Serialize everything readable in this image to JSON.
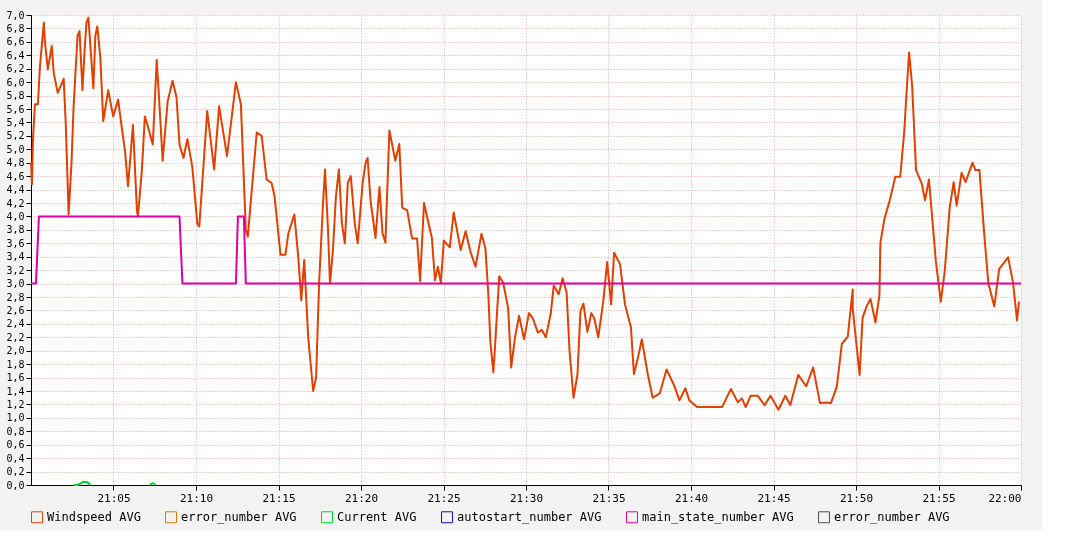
{
  "chart_data": {
    "type": "line",
    "xlim": [
      21.0,
      22.0
    ],
    "xticks": [
      {
        "value": 21.0833,
        "label": "21:05"
      },
      {
        "value": 21.1667,
        "label": "21:10"
      },
      {
        "value": 21.25,
        "label": "21:15"
      },
      {
        "value": 21.3333,
        "label": "21:20"
      },
      {
        "value": 21.4167,
        "label": "21:25"
      },
      {
        "value": 21.5,
        "label": "21:30"
      },
      {
        "value": 21.5833,
        "label": "21:35"
      },
      {
        "value": 21.6667,
        "label": "21:40"
      },
      {
        "value": 21.75,
        "label": "21:45"
      },
      {
        "value": 21.8333,
        "label": "21:50"
      },
      {
        "value": 21.9167,
        "label": "21:55"
      },
      {
        "value": 22.0,
        "label": "22:00"
      }
    ],
    "ylim": [
      0,
      7
    ],
    "yticks": [
      {
        "value": 0,
        "label": "0,0"
      },
      {
        "value": 0.2,
        "label": "0,2"
      },
      {
        "value": 0.4,
        "label": "0,4"
      },
      {
        "value": 0.6,
        "label": "0,6"
      },
      {
        "value": 0.8,
        "label": "0,8"
      },
      {
        "value": 1.0,
        "label": "1,0"
      },
      {
        "value": 1.2,
        "label": "1,2"
      },
      {
        "value": 1.4,
        "label": "1,4"
      },
      {
        "value": 1.6,
        "label": "1,6"
      },
      {
        "value": 1.8,
        "label": "1,8"
      },
      {
        "value": 2.0,
        "label": "2,0"
      },
      {
        "value": 2.2,
        "label": "2,2"
      },
      {
        "value": 2.4,
        "label": "2,4"
      },
      {
        "value": 2.6,
        "label": "2,6"
      },
      {
        "value": 2.8,
        "label": "2,8"
      },
      {
        "value": 3.0,
        "label": "3,0"
      },
      {
        "value": 3.2,
        "label": "3,2"
      },
      {
        "value": 3.4,
        "label": "3,4"
      },
      {
        "value": 3.6,
        "label": "3,6"
      },
      {
        "value": 3.8,
        "label": "3,8"
      },
      {
        "value": 4.0,
        "label": "4,0"
      },
      {
        "value": 4.2,
        "label": "4,2"
      },
      {
        "value": 4.4,
        "label": "4,4"
      },
      {
        "value": 4.6,
        "label": "4,6"
      },
      {
        "value": 4.8,
        "label": "4,8"
      },
      {
        "value": 5.0,
        "label": "5,0"
      },
      {
        "value": 5.2,
        "label": "5,2"
      },
      {
        "value": 5.4,
        "label": "5,4"
      },
      {
        "value": 5.6,
        "label": "5,6"
      },
      {
        "value": 5.8,
        "label": "5,8"
      },
      {
        "value": 6.0,
        "label": "6,0"
      },
      {
        "value": 6.2,
        "label": "6,2"
      },
      {
        "value": 6.4,
        "label": "6,4"
      },
      {
        "value": 6.6,
        "label": "6,6"
      },
      {
        "value": 6.8,
        "label": "6,8"
      },
      {
        "value": 7.0,
        "label": "7,0"
      }
    ],
    "grid": true,
    "legend": "bottom",
    "marker": "none",
    "line_style": "solid",
    "series": [
      {
        "name": "Windspeed AVG",
        "color": "#e04000",
        "x": [
          21.0,
          21.001,
          21.002,
          21.004,
          21.007,
          21.009,
          21.013,
          21.014,
          21.017,
          21.021,
          21.023,
          21.027,
          21.033,
          21.035,
          21.038,
          21.041,
          21.043,
          21.047,
          21.049,
          21.052,
          21.054,
          21.056,
          21.058,
          21.063,
          21.065,
          21.067,
          21.07,
          21.073,
          21.078,
          21.083,
          21.088,
          21.092,
          21.095,
          21.098,
          21.103,
          21.107,
          21.108,
          21.112,
          21.115,
          21.119,
          21.123,
          21.127,
          21.129,
          21.133,
          21.138,
          21.143,
          21.147,
          21.15,
          21.154,
          21.158,
          21.163,
          21.168,
          21.17,
          21.178,
          21.185,
          21.19,
          21.198,
          21.207,
          21.212,
          21.217,
          21.219,
          21.228,
          21.233,
          21.238,
          21.243,
          21.246,
          21.252,
          21.257,
          21.26,
          21.266,
          21.27,
          21.273,
          21.276,
          21.28,
          21.285,
          21.288,
          21.291,
          21.295,
          21.297,
          21.3,
          21.302,
          21.305,
          21.308,
          21.311,
          21.314,
          21.317,
          21.32,
          21.323,
          21.327,
          21.33,
          21.335,
          21.338,
          21.34,
          21.343,
          21.348,
          21.352,
          21.355,
          21.358,
          21.362,
          21.368,
          21.372,
          21.375,
          21.38,
          21.385,
          21.39,
          21.393,
          21.397,
          21.405,
          21.408,
          21.411,
          21.414,
          21.417,
          21.423,
          21.427,
          21.434,
          21.439,
          21.444,
          21.449,
          21.455,
          21.459,
          21.462,
          21.464,
          21.467,
          21.468,
          21.471,
          21.473,
          21.477,
          21.482,
          21.485,
          21.489,
          21.493,
          21.498,
          21.503,
          21.507,
          21.512,
          21.516,
          21.52,
          21.525,
          21.528,
          21.533,
          21.537,
          21.541,
          21.544,
          21.548,
          21.552,
          21.555,
          21.558,
          21.562,
          21.566,
          21.569,
          21.573,
          21.578,
          21.582,
          21.586,
          21.589,
          21.595,
          21.6,
          21.606,
          21.609,
          21.613,
          21.617,
          21.623,
          21.628,
          21.635,
          21.642,
          21.65,
          21.655,
          21.661,
          21.665,
          21.673,
          21.698,
          21.707,
          21.714,
          21.718,
          21.722,
          21.727,
          21.734,
          21.741,
          21.747,
          21.755,
          21.762,
          21.767,
          21.775,
          21.783,
          21.79,
          21.797,
          21.803,
          21.808,
          21.814,
          21.819,
          21.825,
          21.83,
          21.83,
          21.837,
          21.84,
          21.844,
          21.848,
          21.853,
          21.857,
          21.858,
          21.862,
          21.868,
          21.873,
          21.878,
          21.882,
          21.885,
          21.887,
          21.89,
          21.894,
          21.9,
          21.903,
          21.907,
          21.91,
          21.914,
          21.919,
          21.923,
          21.928,
          21.932,
          21.935,
          21.94,
          21.944,
          21.951,
          21.954,
          21.958,
          21.963,
          21.967,
          21.973,
          21.978,
          21.987,
          21.992,
          21.996,
          21.998
        ],
        "values": [
          4.8,
          4.48,
          5.15,
          5.67,
          5.67,
          6.23,
          6.89,
          6.61,
          6.19,
          6.54,
          6.13,
          5.84,
          6.05,
          5.42,
          4.03,
          4.83,
          5.63,
          6.69,
          6.76,
          5.88,
          6.44,
          6.89,
          6.96,
          5.91,
          6.69,
          6.83,
          6.37,
          5.42,
          5.88,
          5.49,
          5.74,
          5.29,
          4.97,
          4.45,
          5.36,
          4.09,
          4.0,
          4.69,
          5.49,
          5.29,
          5.07,
          6.33,
          5.85,
          4.83,
          5.71,
          6.02,
          5.77,
          5.07,
          4.87,
          5.15,
          4.73,
          3.89,
          3.85,
          5.57,
          4.7,
          5.64,
          4.9,
          6.0,
          5.67,
          3.8,
          3.7,
          5.25,
          5.2,
          4.55,
          4.5,
          4.3,
          3.43,
          3.43,
          3.75,
          4.03,
          3.39,
          2.75,
          3.35,
          2.2,
          1.4,
          1.6,
          3.0,
          4.2,
          4.7,
          3.8,
          3.0,
          3.5,
          4.3,
          4.7,
          3.9,
          3.6,
          4.5,
          4.6,
          3.9,
          3.6,
          4.5,
          4.8,
          4.87,
          4.23,
          3.68,
          4.44,
          3.75,
          3.61,
          5.28,
          4.83,
          5.08,
          4.13,
          4.09,
          3.67,
          3.67,
          3.04,
          4.2,
          3.67,
          3.05,
          3.25,
          3.01,
          3.64,
          3.54,
          4.06,
          3.5,
          3.78,
          3.47,
          3.25,
          3.74,
          3.53,
          2.83,
          2.13,
          1.68,
          1.89,
          2.63,
          3.11,
          3.01,
          2.63,
          1.75,
          2.21,
          2.52,
          2.17,
          2.56,
          2.48,
          2.27,
          2.31,
          2.2,
          2.55,
          2.97,
          2.84,
          3.08,
          2.87,
          1.99,
          1.3,
          1.65,
          2.59,
          2.7,
          2.28,
          2.56,
          2.48,
          2.2,
          2.73,
          3.32,
          2.69,
          3.46,
          3.29,
          2.69,
          2.35,
          1.65,
          1.89,
          2.17,
          1.65,
          1.3,
          1.36,
          1.72,
          1.47,
          1.26,
          1.44,
          1.26,
          1.16,
          1.16,
          1.43,
          1.23,
          1.29,
          1.16,
          1.33,
          1.33,
          1.19,
          1.33,
          1.12,
          1.33,
          1.19,
          1.64,
          1.47,
          1.75,
          1.22,
          1.23,
          1.22,
          1.47,
          2.1,
          2.21,
          2.91,
          2.63,
          1.64,
          2.49,
          2.66,
          2.77,
          2.42,
          2.83,
          3.61,
          3.96,
          4.27,
          4.59,
          4.59,
          5.25,
          5.99,
          6.44,
          5.95,
          4.69,
          4.48,
          4.24,
          4.55,
          4.03,
          3.33,
          2.73,
          3.19,
          4.13,
          4.51,
          4.16,
          4.65,
          4.51,
          4.8,
          4.69,
          4.69,
          3.71,
          3.01,
          2.66,
          3.22,
          3.39,
          3.01,
          2.45,
          2.73
        ]
      },
      {
        "name": "error_number AVG",
        "color": "#e07800"
      },
      {
        "name": "Current AVG",
        "color": "#00d030",
        "x": [
          21.043,
          21.047,
          21.05,
          21.053,
          21.057,
          21.06,
          21.09,
          21.12,
          21.123,
          21.126
        ],
        "values": [
          0,
          0,
          0.02,
          0.05,
          0.04,
          0,
          null,
          0,
          0.03,
          0
        ]
      },
      {
        "name": "autostart_number AVG",
        "color": "#2000e0"
      },
      {
        "name": "main_state_number AVG",
        "color": "#e000a0",
        "x": [
          21.0,
          21.005,
          21.008,
          21.15,
          21.153,
          21.207,
          21.209,
          21.215,
          21.217,
          22.0
        ],
        "values": [
          3,
          3,
          4,
          4,
          3,
          3,
          4,
          4,
          3,
          3
        ]
      },
      {
        "name": "error_number AVG",
        "color": "#505050"
      }
    ]
  }
}
